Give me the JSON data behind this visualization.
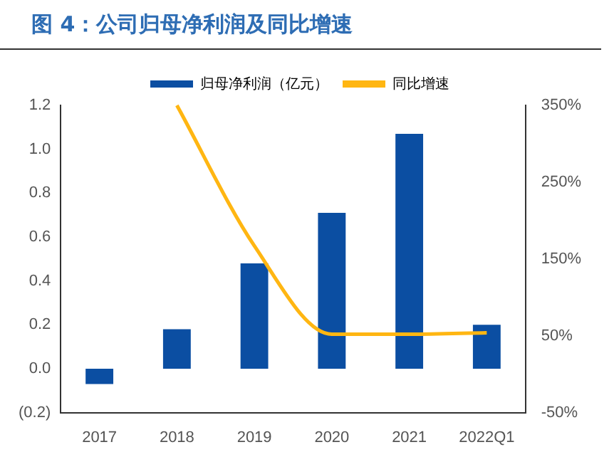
{
  "chart_data": {
    "type": "bar",
    "title": "图 4：公司归母净利润及同比增速",
    "categories": [
      "2017",
      "2018",
      "2019",
      "2020",
      "2021",
      "2022Q1"
    ],
    "series": [
      {
        "name": "归母净利润（亿元）",
        "color": "#0b4ea2",
        "values": [
          -0.07,
          0.18,
          0.48,
          0.71,
          1.07,
          0.2
        ]
      },
      {
        "name": "同比增速",
        "type": "line",
        "axis": "y2",
        "color": "#ffb612",
        "marker": "none",
        "values": [
          null,
          350,
          167,
          52,
          52,
          54
        ]
      }
    ],
    "ylim": [
      -0.2,
      1.2
    ],
    "yticks": [
      {
        "value": -0.2,
        "label": "(0.2)"
      },
      {
        "value": 0,
        "label": "0.0"
      },
      {
        "value": 0.2,
        "label": "0.2"
      },
      {
        "value": 0.4,
        "label": "0.4"
      },
      {
        "value": 0.6,
        "label": "0.6"
      },
      {
        "value": 0.8,
        "label": "0.8"
      },
      {
        "value": 1.0,
        "label": "1.0"
      },
      {
        "value": 1.2,
        "label": "1.2"
      }
    ],
    "y2lim": [
      -50,
      350
    ],
    "y2ticks": [
      {
        "value": -50,
        "label": "-50%"
      },
      {
        "value": 50,
        "label": "50%"
      },
      {
        "value": 150,
        "label": "150%"
      },
      {
        "value": 250,
        "label": "250%"
      },
      {
        "value": 350,
        "label": "350%"
      }
    ],
    "grid": false,
    "legend": "top"
  }
}
